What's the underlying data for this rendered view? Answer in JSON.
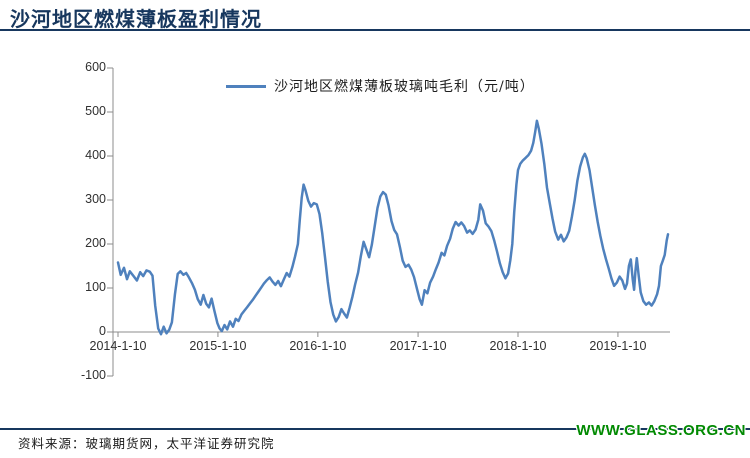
{
  "header": {
    "title": "沙河地区燃煤薄板盈利情况"
  },
  "footer": {
    "source": "资料来源：玻璃期货网，太平洋证券研究院",
    "watermark": "WWW.GLASS.ORG.CN"
  },
  "colors": {
    "accent_navy": "#17375e",
    "line_blue": "#4f81bd",
    "axis_gray": "#8c8c8c",
    "watermark_green": "#028a02"
  },
  "chart_data": {
    "type": "line",
    "title": "沙河地区燃煤薄板盈利情况",
    "legend": "沙河地区燃煤薄板玻璃吨毛利（元/吨）",
    "legend_position": "top-center",
    "grid": false,
    "ylim": [
      -100,
      600
    ],
    "y_ticks": [
      600,
      500,
      400,
      300,
      200,
      100,
      0,
      -100
    ],
    "x_ticks": [
      {
        "label": "2014-1-10",
        "date": "2014-01-10"
      },
      {
        "label": "2015-1-10",
        "date": "2015-01-10"
      },
      {
        "label": "2016-1-10",
        "date": "2016-01-10"
      },
      {
        "label": "2017-1-10",
        "date": "2017-01-10"
      },
      {
        "label": "2018-1-10",
        "date": "2018-01-10"
      },
      {
        "label": "2019-1-10",
        "date": "2019-01-10"
      }
    ],
    "series": [
      {
        "name": "沙河地区燃煤薄板玻璃吨毛利（元/吨）",
        "color": "#4f81bd",
        "points": [
          [
            "2014-01-10",
            158
          ],
          [
            "2014-01-20",
            130
          ],
          [
            "2014-02-01",
            146
          ],
          [
            "2014-02-12",
            120
          ],
          [
            "2014-02-22",
            138
          ],
          [
            "2014-03-08",
            127
          ],
          [
            "2014-03-20",
            117
          ],
          [
            "2014-04-01",
            136
          ],
          [
            "2014-04-12",
            127
          ],
          [
            "2014-04-24",
            140
          ],
          [
            "2014-05-06",
            137
          ],
          [
            "2014-05-16",
            128
          ],
          [
            "2014-05-26",
            60
          ],
          [
            "2014-06-06",
            8
          ],
          [
            "2014-06-16",
            -5
          ],
          [
            "2014-06-26",
            12
          ],
          [
            "2014-07-06",
            -3
          ],
          [
            "2014-07-16",
            5
          ],
          [
            "2014-07-26",
            22
          ],
          [
            "2014-08-06",
            85
          ],
          [
            "2014-08-16",
            132
          ],
          [
            "2014-08-26",
            138
          ],
          [
            "2014-09-06",
            130
          ],
          [
            "2014-09-16",
            134
          ],
          [
            "2014-09-26",
            124
          ],
          [
            "2014-10-08",
            110
          ],
          [
            "2014-10-18",
            96
          ],
          [
            "2014-10-28",
            75
          ],
          [
            "2014-11-08",
            62
          ],
          [
            "2014-11-18",
            84
          ],
          [
            "2014-11-28",
            64
          ],
          [
            "2014-12-08",
            56
          ],
          [
            "2014-12-18",
            76
          ],
          [
            "2014-12-28",
            48
          ],
          [
            "2015-01-08",
            20
          ],
          [
            "2015-01-16",
            8
          ],
          [
            "2015-01-24",
            2
          ],
          [
            "2015-02-03",
            16
          ],
          [
            "2015-02-13",
            6
          ],
          [
            "2015-02-23",
            24
          ],
          [
            "2015-03-06",
            12
          ],
          [
            "2015-03-16",
            30
          ],
          [
            "2015-03-26",
            25
          ],
          [
            "2015-04-06",
            40
          ],
          [
            "2015-04-16",
            48
          ],
          [
            "2015-04-26",
            56
          ],
          [
            "2015-05-07",
            65
          ],
          [
            "2015-05-17",
            73
          ],
          [
            "2015-05-27",
            82
          ],
          [
            "2015-06-07",
            92
          ],
          [
            "2015-06-17",
            101
          ],
          [
            "2015-06-27",
            110
          ],
          [
            "2015-07-08",
            118
          ],
          [
            "2015-07-18",
            124
          ],
          [
            "2015-07-28",
            115
          ],
          [
            "2015-08-08",
            107
          ],
          [
            "2015-08-18",
            116
          ],
          [
            "2015-08-28",
            104
          ],
          [
            "2015-09-08",
            120
          ],
          [
            "2015-09-18",
            134
          ],
          [
            "2015-09-28",
            126
          ],
          [
            "2015-10-09",
            148
          ],
          [
            "2015-10-19",
            172
          ],
          [
            "2015-10-29",
            200
          ],
          [
            "2015-11-05",
            255
          ],
          [
            "2015-11-12",
            305
          ],
          [
            "2015-11-19",
            335
          ],
          [
            "2015-11-26",
            322
          ],
          [
            "2015-12-06",
            298
          ],
          [
            "2015-12-16",
            285
          ],
          [
            "2015-12-26",
            293
          ],
          [
            "2016-01-06",
            290
          ],
          [
            "2016-01-16",
            268
          ],
          [
            "2016-01-26",
            225
          ],
          [
            "2016-02-05",
            170
          ],
          [
            "2016-02-15",
            115
          ],
          [
            "2016-02-25",
            68
          ],
          [
            "2016-03-06",
            40
          ],
          [
            "2016-03-16",
            24
          ],
          [
            "2016-03-26",
            34
          ],
          [
            "2016-04-05",
            52
          ],
          [
            "2016-04-15",
            42
          ],
          [
            "2016-04-25",
            33
          ],
          [
            "2016-05-05",
            55
          ],
          [
            "2016-05-15",
            80
          ],
          [
            "2016-05-25",
            108
          ],
          [
            "2016-06-05",
            135
          ],
          [
            "2016-06-15",
            172
          ],
          [
            "2016-06-25",
            205
          ],
          [
            "2016-07-05",
            188
          ],
          [
            "2016-07-15",
            170
          ],
          [
            "2016-07-25",
            198
          ],
          [
            "2016-08-05",
            242
          ],
          [
            "2016-08-15",
            282
          ],
          [
            "2016-08-25",
            308
          ],
          [
            "2016-09-04",
            318
          ],
          [
            "2016-09-14",
            312
          ],
          [
            "2016-09-24",
            288
          ],
          [
            "2016-10-05",
            252
          ],
          [
            "2016-10-15",
            232
          ],
          [
            "2016-10-25",
            222
          ],
          [
            "2016-11-05",
            192
          ],
          [
            "2016-11-15",
            162
          ],
          [
            "2016-11-25",
            148
          ],
          [
            "2016-12-06",
            153
          ],
          [
            "2016-12-16",
            142
          ],
          [
            "2016-12-26",
            125
          ],
          [
            "2017-01-06",
            98
          ],
          [
            "2017-01-16",
            74
          ],
          [
            "2017-01-24",
            62
          ],
          [
            "2017-02-03",
            95
          ],
          [
            "2017-02-13",
            88
          ],
          [
            "2017-02-23",
            112
          ],
          [
            "2017-03-06",
            126
          ],
          [
            "2017-03-16",
            143
          ],
          [
            "2017-03-26",
            158
          ],
          [
            "2017-04-06",
            180
          ],
          [
            "2017-04-16",
            174
          ],
          [
            "2017-04-26",
            196
          ],
          [
            "2017-05-07",
            212
          ],
          [
            "2017-05-17",
            235
          ],
          [
            "2017-05-27",
            250
          ],
          [
            "2017-06-07",
            242
          ],
          [
            "2017-06-17",
            249
          ],
          [
            "2017-06-27",
            241
          ],
          [
            "2017-07-08",
            226
          ],
          [
            "2017-07-18",
            231
          ],
          [
            "2017-07-28",
            223
          ],
          [
            "2017-08-08",
            233
          ],
          [
            "2017-08-18",
            255
          ],
          [
            "2017-08-25",
            290
          ],
          [
            "2017-09-04",
            276
          ],
          [
            "2017-09-14",
            247
          ],
          [
            "2017-09-24",
            240
          ],
          [
            "2017-10-05",
            229
          ],
          [
            "2017-10-15",
            208
          ],
          [
            "2017-10-25",
            184
          ],
          [
            "2017-11-05",
            156
          ],
          [
            "2017-11-15",
            136
          ],
          [
            "2017-11-25",
            122
          ],
          [
            "2017-12-05",
            133
          ],
          [
            "2017-12-13",
            163
          ],
          [
            "2017-12-20",
            200
          ],
          [
            "2017-12-27",
            272
          ],
          [
            "2018-01-04",
            335
          ],
          [
            "2018-01-10",
            368
          ],
          [
            "2018-01-18",
            382
          ],
          [
            "2018-01-28",
            390
          ],
          [
            "2018-02-07",
            396
          ],
          [
            "2018-02-17",
            402
          ],
          [
            "2018-02-27",
            412
          ],
          [
            "2018-03-07",
            430
          ],
          [
            "2018-03-14",
            455
          ],
          [
            "2018-03-20",
            480
          ],
          [
            "2018-03-27",
            462
          ],
          [
            "2018-04-06",
            428
          ],
          [
            "2018-04-16",
            382
          ],
          [
            "2018-04-26",
            328
          ],
          [
            "2018-05-06",
            292
          ],
          [
            "2018-05-16",
            258
          ],
          [
            "2018-05-26",
            228
          ],
          [
            "2018-06-06",
            210
          ],
          [
            "2018-06-16",
            221
          ],
          [
            "2018-06-26",
            206
          ],
          [
            "2018-07-06",
            215
          ],
          [
            "2018-07-16",
            230
          ],
          [
            "2018-07-26",
            262
          ],
          [
            "2018-08-05",
            300
          ],
          [
            "2018-08-15",
            344
          ],
          [
            "2018-08-25",
            376
          ],
          [
            "2018-09-04",
            397
          ],
          [
            "2018-09-11",
            405
          ],
          [
            "2018-09-18",
            395
          ],
          [
            "2018-09-28",
            368
          ],
          [
            "2018-10-08",
            328
          ],
          [
            "2018-10-18",
            288
          ],
          [
            "2018-10-28",
            250
          ],
          [
            "2018-11-07",
            218
          ],
          [
            "2018-11-17",
            190
          ],
          [
            "2018-11-27",
            166
          ],
          [
            "2018-12-07",
            145
          ],
          [
            "2018-12-17",
            122
          ],
          [
            "2018-12-27",
            105
          ],
          [
            "2019-01-06",
            112
          ],
          [
            "2019-01-16",
            126
          ],
          [
            "2019-01-26",
            117
          ],
          [
            "2019-02-05",
            98
          ],
          [
            "2019-02-12",
            110
          ],
          [
            "2019-02-19",
            150
          ],
          [
            "2019-02-26",
            165
          ],
          [
            "2019-03-05",
            120
          ],
          [
            "2019-03-10",
            96
          ],
          [
            "2019-03-15",
            140
          ],
          [
            "2019-03-20",
            168
          ],
          [
            "2019-03-27",
            128
          ],
          [
            "2019-04-03",
            90
          ],
          [
            "2019-04-13",
            70
          ],
          [
            "2019-04-23",
            62
          ],
          [
            "2019-05-03",
            67
          ],
          [
            "2019-05-13",
            60
          ],
          [
            "2019-05-23",
            70
          ],
          [
            "2019-06-02",
            86
          ],
          [
            "2019-06-09",
            105
          ],
          [
            "2019-06-16",
            150
          ],
          [
            "2019-06-23",
            162
          ],
          [
            "2019-06-30",
            175
          ],
          [
            "2019-07-07",
            208
          ],
          [
            "2019-07-12",
            222
          ]
        ]
      }
    ]
  }
}
